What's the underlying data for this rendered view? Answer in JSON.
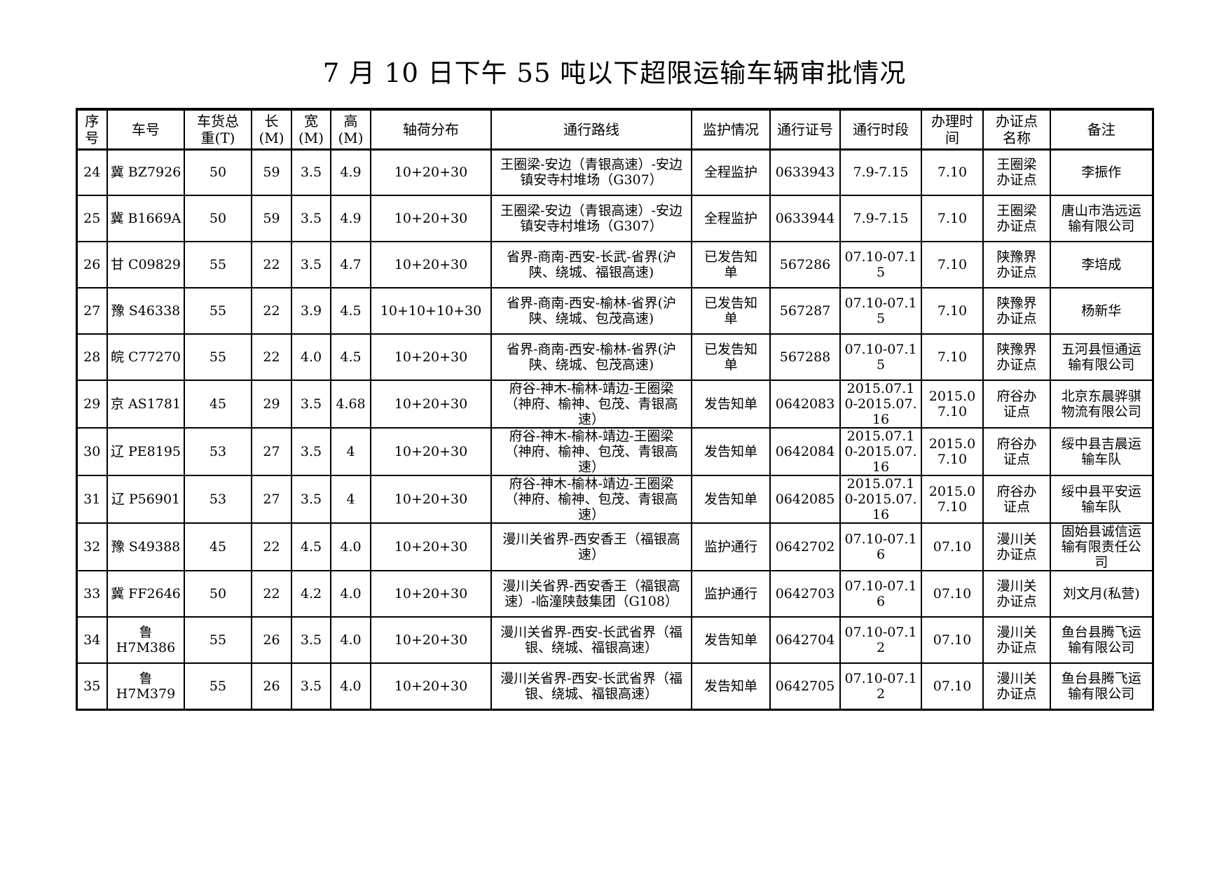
{
  "title": "7 月 10 日下午 55 吨以下超限运输车辆审批情况",
  "table": {
    "headers": [
      "序\n号",
      "车号",
      "车货总\n重(T)",
      "长\n(M)",
      "宽\n(M)",
      "高\n(M)",
      "轴荷分布",
      "通行路线",
      "监护情况",
      "通行证号",
      "通行时段",
      "办理时\n间",
      "办证点\n名称",
      "备注"
    ],
    "rows": [
      [
        "24",
        "冀 BZ7926",
        "50",
        "59",
        "3.5",
        "4.9",
        "10+20+30",
        "王圈梁-安边（青银高速）-安边镇安寺村堆场（G307）",
        "全程监护",
        "0633943",
        "7.9-7.15",
        "7.10",
        "王圈梁办证点",
        "李振作"
      ],
      [
        "25",
        "冀 B1669A",
        "50",
        "59",
        "3.5",
        "4.9",
        "10+20+30",
        "王圈梁-安边（青银高速）-安边镇安寺村堆场（G307）",
        "全程监护",
        "0633944",
        "7.9-7.15",
        "7.10",
        "王圈梁办证点",
        "唐山市浩远运输有限公司"
      ],
      [
        "26",
        "甘 C09829",
        "55",
        "22",
        "3.5",
        "4.7",
        "10+20+30",
        "省界-商南-西安-长武-省界(沪陕、绕城、福银高速)",
        "已发告知单",
        "567286",
        "07.10-07.15",
        "7.10",
        "陕豫界办证点",
        "李培成"
      ],
      [
        "27",
        "豫 S46338",
        "55",
        "22",
        "3.9",
        "4.5",
        "10+10+10+30",
        "省界-商南-西安-榆林-省界(沪陕、绕城、包茂高速)",
        "已发告知单",
        "567287",
        "07.10-07.15",
        "7.10",
        "陕豫界办证点",
        "杨新华"
      ],
      [
        "28",
        "皖 C77270",
        "55",
        "22",
        "4.0",
        "4.5",
        "10+20+30",
        "省界-商南-西安-榆林-省界(沪陕、绕城、包茂高速)",
        "已发告知单",
        "567288",
        "07.10-07.15",
        "7.10",
        "陕豫界办证点",
        "五河县恒通运输有限公司"
      ],
      [
        "29",
        "京 AS1781",
        "45",
        "29",
        "3.5",
        "4.68",
        "10+20+30",
        "府谷-神木-榆林-靖边-王圈梁（神府、榆神、包茂、青银高速）",
        "发告知单",
        "0642083",
        "2015.07.10-2015.07.16",
        "2015.07.10",
        "府谷办证点",
        "北京东晨骅骐物流有限公司"
      ],
      [
        "30",
        "辽 PE8195",
        "53",
        "27",
        "3.5",
        "4",
        "10+20+30",
        "府谷-神木-榆林-靖边-王圈梁（神府、榆神、包茂、青银高速）",
        "发告知单",
        "0642084",
        "2015.07.10-2015.07.16",
        "2015.07.10",
        "府谷办证点",
        "绥中县吉晨运输车队"
      ],
      [
        "31",
        "辽 P56901",
        "53",
        "27",
        "3.5",
        "4",
        "10+20+30",
        "府谷-神木-榆林-靖边-王圈梁（神府、榆神、包茂、青银高速）",
        "发告知单",
        "0642085",
        "2015.07.10-2015.07.16",
        "2015.07.10",
        "府谷办证点",
        "绥中县平安运输车队"
      ],
      [
        "32",
        "豫 S49388",
        "45",
        "22",
        "4.5",
        "4.0",
        "10+20+30",
        "漫川关省界-西安香王（福银高速）",
        "监护通行",
        "0642702",
        "07.10-07.16",
        "07.10",
        "漫川关办证点",
        "固始县诚信运输有限责任公司"
      ],
      [
        "33",
        "冀 FF2646",
        "50",
        "22",
        "4.2",
        "4.0",
        "10+20+30",
        "漫川关省界-西安香王（福银高速）-临潼陕鼓集团（G108）",
        "监护通行",
        "0642703",
        "07.10-07.16",
        "07.10",
        "漫川关办证点",
        "刘文月(私营)"
      ],
      [
        "34",
        "鲁 H7M386",
        "55",
        "26",
        "3.5",
        "4.0",
        "10+20+30",
        "漫川关省界-西安-长武省界（福银、绕城、福银高速）",
        "发告知单",
        "0642704",
        "07.10-07.12",
        "07.10",
        "漫川关办证点",
        "鱼台县腾飞运输有限公司"
      ],
      [
        "35",
        "鲁 H7M379",
        "55",
        "26",
        "3.5",
        "4.0",
        "10+20+30",
        "漫川关省界-西安-长武省界（福银、绕城、福银高速）",
        "发告知单",
        "0642705",
        "07.10-07.12",
        "07.10",
        "漫川关办证点",
        "鱼台县腾飞运输有限公司"
      ]
    ]
  }
}
